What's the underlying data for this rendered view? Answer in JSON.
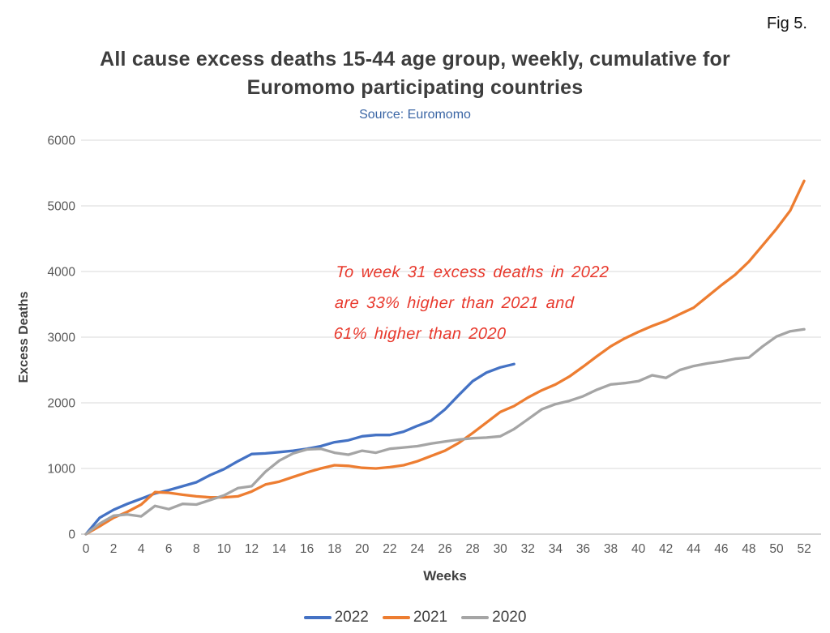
{
  "figure_label": "Fig 5.",
  "title_lines": [
    "All cause excess deaths 15-44 age group, weekly, cumulative for",
    "Euromomo participating countries"
  ],
  "source": "Source: Euromomo",
  "colors": {
    "series_2022": "#4472C4",
    "series_2021": "#ED7D31",
    "series_2020": "#A5A5A5",
    "annotation_red": "#E8392D",
    "gridline": "#D9D9D9",
    "axis_line": "#C9C9C9",
    "tick_text": "#595959",
    "title_text": "#3d3d3d",
    "source_text": "#3b66a5"
  },
  "chart_data": {
    "type": "line",
    "title": "All cause excess deaths 15-44 age group, weekly, cumulative for Euromomo participating countries",
    "subtitle": "Source: Euromomo",
    "xlabel": "Weeks",
    "ylabel": "Excess Deaths",
    "xlim": [
      0,
      52
    ],
    "ylim": [
      0,
      6000
    ],
    "x_ticks": [
      0,
      2,
      4,
      6,
      8,
      10,
      12,
      14,
      16,
      18,
      20,
      22,
      24,
      26,
      28,
      30,
      32,
      34,
      36,
      38,
      40,
      42,
      44,
      46,
      48,
      50,
      52
    ],
    "y_ticks": [
      0,
      1000,
      2000,
      3000,
      4000,
      5000,
      6000
    ],
    "grid": "horizontal",
    "legend_position": "bottom",
    "series": [
      {
        "name": "2022",
        "color": "#4472C4",
        "x_start": 0,
        "values": [
          0,
          250,
          370,
          460,
          540,
          620,
          670,
          730,
          790,
          900,
          990,
          1110,
          1220,
          1230,
          1250,
          1270,
          1300,
          1340,
          1400,
          1430,
          1490,
          1510,
          1510,
          1560,
          1650,
          1730,
          1900,
          2120,
          2330,
          2460,
          2540,
          2590
        ]
      },
      {
        "name": "2021",
        "color": "#ED7D31",
        "x_start": 0,
        "values": [
          0,
          120,
          250,
          340,
          450,
          640,
          630,
          600,
          575,
          560,
          560,
          575,
          650,
          755,
          800,
          870,
          940,
          1000,
          1050,
          1040,
          1010,
          1000,
          1020,
          1050,
          1110,
          1190,
          1270,
          1390,
          1540,
          1700,
          1860,
          1950,
          2080,
          2190,
          2280,
          2400,
          2550,
          2710,
          2860,
          2980,
          3080,
          3170,
          3250,
          3350,
          3450,
          3620,
          3790,
          3950,
          4150,
          4400,
          4650,
          4930,
          5380
        ]
      },
      {
        "name": "2020",
        "color": "#A5A5A5",
        "x_start": 0,
        "values": [
          0,
          160,
          280,
          300,
          270,
          430,
          380,
          460,
          450,
          520,
          590,
          700,
          730,
          950,
          1120,
          1230,
          1290,
          1300,
          1240,
          1210,
          1270,
          1240,
          1300,
          1320,
          1340,
          1380,
          1410,
          1440,
          1460,
          1470,
          1490,
          1600,
          1750,
          1900,
          1980,
          2030,
          2100,
          2200,
          2280,
          2300,
          2330,
          2420,
          2380,
          2500,
          2560,
          2600,
          2630,
          2670,
          2690,
          2860,
          3010,
          3090,
          3120
        ]
      }
    ],
    "annotation": {
      "lines": [
        "To week 31 excess deaths in 2022",
        "are 33% higher than 2021 and",
        "61% higher than 2020"
      ],
      "color": "#E8392D"
    }
  }
}
